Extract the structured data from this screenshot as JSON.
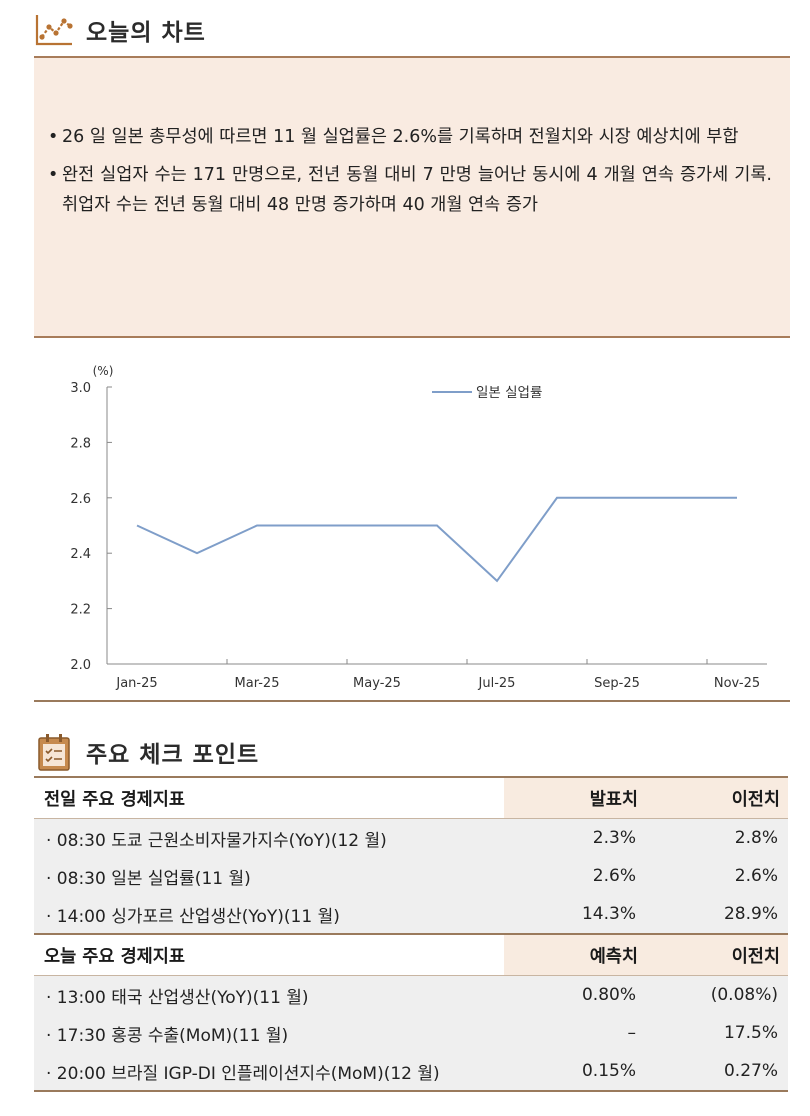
{
  "sections": {
    "chart_title": "오늘의 차트",
    "checkpoint_title": "주요 체크 포인트"
  },
  "icons": {
    "chart_icon": "line-chart-icon",
    "checkpoint_icon": "checklist-icon",
    "accent_color": "#b87333"
  },
  "summary": {
    "bullets": [
      "26 일 일본 총무성에 따르면 11 월 실업률은 2.6%를 기록하며 전월치와 시장 예상치에 부합",
      "완전 실업자 수는 171 만명으로, 전년 동월 대비 7 만명 늘어난 동시에 4 개월 연속 증가세 기록. 취업자 수는 전년 동월 대비 48 만명 증가하며 40 개월 연속 증가"
    ]
  },
  "chart_data": {
    "type": "line",
    "title": "",
    "ylabel": "(%)",
    "xlabel": "",
    "x": [
      "Jan-25",
      "Feb-25",
      "Mar-25",
      "Apr-25",
      "May-25",
      "Jun-25",
      "Jul-25",
      "Aug-25",
      "Sep-25",
      "Oct-25",
      "Nov-25"
    ],
    "xticks": [
      "Jan-25",
      "Mar-25",
      "May-25",
      "Jul-25",
      "Sep-25",
      "Nov-25"
    ],
    "ylim": [
      2.0,
      3.0
    ],
    "yticks": [
      "2.0",
      "2.2",
      "2.4",
      "2.6",
      "2.8",
      "3.0"
    ],
    "series": [
      {
        "name": "일본 실업률",
        "values": [
          2.5,
          2.4,
          2.5,
          2.5,
          2.5,
          2.5,
          2.3,
          2.6,
          2.6,
          2.6,
          2.6
        ],
        "color": "#7f9ec9"
      }
    ],
    "legend": "top-center",
    "grid": false
  },
  "prev_table": {
    "headers": [
      "전일 주요 경제지표",
      "발표치",
      "이전치"
    ],
    "rows": [
      [
        "· 08:30 도쿄 근원소비자물가지수(YoY)(12 월)",
        "2.3%",
        "2.8%"
      ],
      [
        "· 08:30 일본 실업률(11 월)",
        "2.6%",
        "2.6%"
      ],
      [
        "· 14:00 싱가포르 산업생산(YoY)(11 월)",
        "14.3%",
        "28.9%"
      ]
    ]
  },
  "today_table": {
    "headers": [
      "오늘 주요 경제지표",
      "예측치",
      "이전치"
    ],
    "rows": [
      [
        "· 13:00 태국 산업생산(YoY)(11 월)",
        "0.80%",
        "(0.08%)"
      ],
      [
        "· 17:30 홍콩 수출(MoM)(11 월)",
        "–",
        "17.5%"
      ],
      [
        "· 20:00 브라질 IGP-DI 인플레이션지수(MoM)(12 월)",
        "0.15%",
        "0.27%"
      ]
    ]
  }
}
